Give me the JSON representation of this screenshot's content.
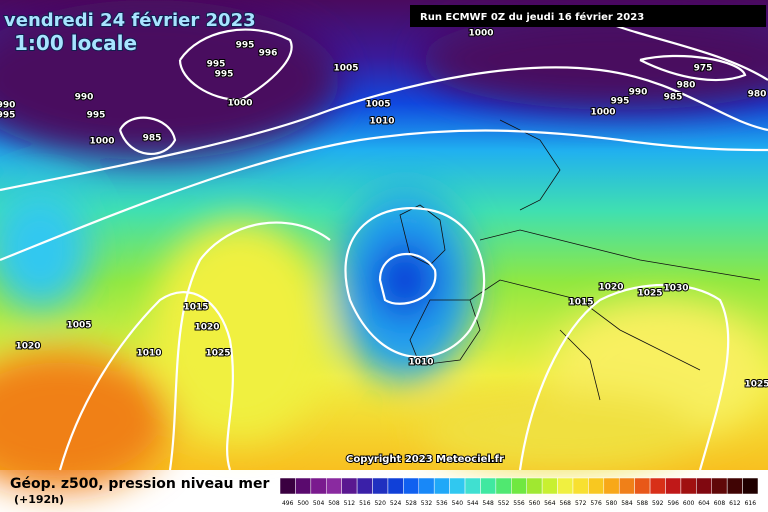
{
  "header": {
    "date": "vendredi 24 février 2023",
    "time": "1:00 locale",
    "run": "Run ECMWF 0Z du jeudi 16 février 2023"
  },
  "isobar_labels": [
    "995",
    "996",
    "995",
    "995",
    "1000",
    "1005",
    "1005",
    "1010",
    "990",
    "995",
    "1000",
    "985",
    "990",
    "995",
    "1000",
    "975",
    "980",
    "980",
    "990",
    "985",
    "995",
    "1000",
    "1015",
    "1020",
    "1025",
    "1010",
    "1005",
    "1020",
    "1010",
    "1015",
    "1020",
    "1025",
    "1030",
    "1025"
  ],
  "copyright": "Copyright 2023 Meteociel.fr",
  "footer": {
    "title": "Géop. z500, pression niveau mer",
    "lead": "(+192h)"
  },
  "colorbar": {
    "labels": [
      "496",
      "500",
      "504",
      "508",
      "512",
      "516",
      "520",
      "524",
      "528",
      "532",
      "536",
      "540",
      "544",
      "548",
      "552",
      "556",
      "560",
      "564",
      "568",
      "572",
      "576",
      "580",
      "584",
      "588",
      "592",
      "596",
      "600",
      "604",
      "608",
      "612",
      "616"
    ],
    "colors": [
      "#3a0040",
      "#5a0a6e",
      "#7a1a8e",
      "#8a2aa0",
      "#5a1890",
      "#3a20a8",
      "#2030c0",
      "#1040d8",
      "#1060f0",
      "#1888f8",
      "#20a8f8",
      "#30c8f0",
      "#40e0d0",
      "#40e8a0",
      "#50e870",
      "#70e840",
      "#a0e830",
      "#c8f030",
      "#f0f040",
      "#f8e030",
      "#f8c820",
      "#f8a818",
      "#f08018",
      "#e85818",
      "#d83018",
      "#c01818",
      "#a01010",
      "#800810",
      "#600808",
      "#400404",
      "#200000"
    ]
  }
}
